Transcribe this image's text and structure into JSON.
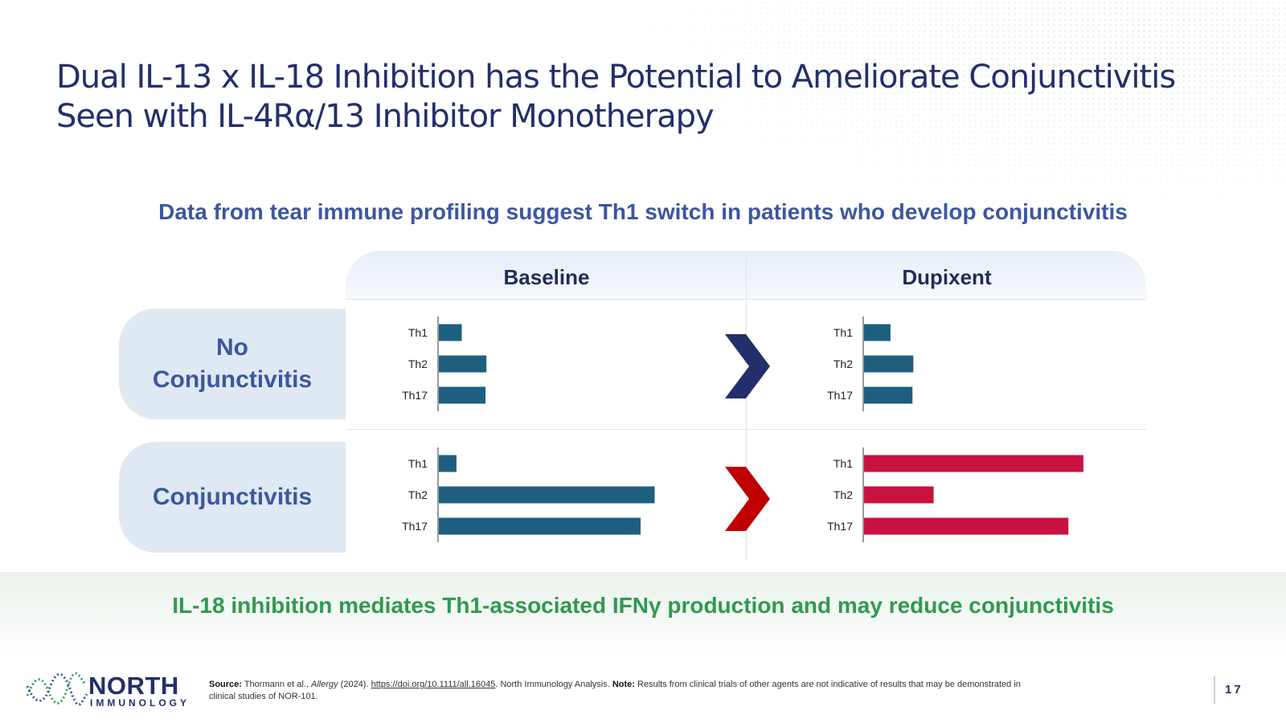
{
  "title": {
    "line1": "Dual IL-13 x IL-18 Inhibition has the Potential to Ameliorate Conjunctivitis",
    "line2": "Seen with IL-4Rα/13 Inhibitor Monotherapy"
  },
  "subtitle": "Data from tear immune profiling suggest Th1 switch in patients who develop conjunctivitis",
  "columns": [
    "Baseline",
    "Dupixent"
  ],
  "rows": [
    {
      "line1": "No",
      "line2": "Conjunctivitis"
    },
    {
      "line1": "Conjunctivitis",
      "line2": ""
    }
  ],
  "colors": {
    "bar_blue": "#1e5f80",
    "bar_red": "#c8123f",
    "chevron_navy": "#232f6b",
    "chevron_red": "#c00000",
    "title": "#232f6b",
    "accent_blue": "#3c57a0",
    "accent_green": "#2f9a4f"
  },
  "chart_data": [
    {
      "type": "bar",
      "orientation": "horizontal",
      "panel": "No Conjunctivitis / Baseline",
      "categories": [
        "Th1",
        "Th2",
        "Th17"
      ],
      "values": [
        0.26,
        0.54,
        0.53
      ],
      "xlim": [
        0,
        2.5
      ],
      "grid": false
    },
    {
      "type": "bar",
      "orientation": "horizontal",
      "panel": "No Conjunctivitis / Dupixent",
      "categories": [
        "Th1",
        "Th2",
        "Th17"
      ],
      "values": [
        0.3,
        0.56,
        0.55
      ],
      "xlim": [
        0,
        2.5
      ],
      "grid": false
    },
    {
      "type": "bar",
      "orientation": "horizontal",
      "panel": "Conjunctivitis / Baseline",
      "categories": [
        "Th1",
        "Th2",
        "Th17"
      ],
      "values": [
        0.2,
        2.45,
        2.29
      ],
      "xlim": [
        0,
        2.5
      ],
      "grid": false
    },
    {
      "type": "bar",
      "orientation": "horizontal",
      "panel": "Conjunctivitis / Dupixent",
      "categories": [
        "Th1",
        "Th2",
        "Th17"
      ],
      "values": [
        2.49,
        0.79,
        2.32
      ],
      "xlim": [
        0,
        2.5
      ],
      "grid": false
    }
  ],
  "conclusion": "IL-18 inhibition mediates Th1-associated IFNγ production and may reduce conjunctivitis",
  "logo": {
    "name": "NORTH",
    "sub": "IMMUNOLOGY"
  },
  "source": {
    "label": "Source:",
    "authors": "Thormann et al.,",
    "journal": "Allergy",
    "year": "(2024).",
    "link": "https://doi.org/10.1111/all.16045",
    "after_link": ". North Immunology Analysis.",
    "note_label": "Note:",
    "note": "Results from clinical trials of other agents are not indicative of results that may be demonstrated in clinical studies of NOR-101."
  },
  "page_number": "17"
}
